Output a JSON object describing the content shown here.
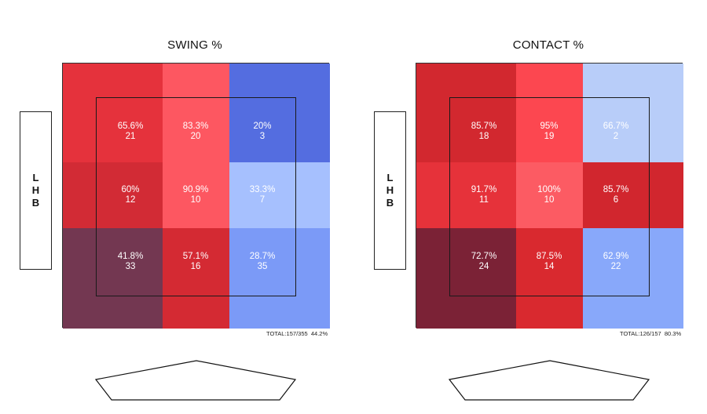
{
  "batter_side_letters": [
    "L",
    "H",
    "B"
  ],
  "color_scale": {
    "high": "#b3202e",
    "mid": "#ff5c64",
    "low": "#4f6ae0",
    "pale": "#b6cdfa"
  },
  "chart_data": [
    {
      "type": "heatmap",
      "title": "SWING %",
      "total_label": "TOTAL:157/355",
      "total_pct": "44.2%",
      "inner_zone": [
        {
          "row": 0,
          "col": 0,
          "pct": "65.6%",
          "count": "21",
          "value": 65.6
        },
        {
          "row": 0,
          "col": 1,
          "pct": "83.3%",
          "count": "20",
          "value": 83.3
        },
        {
          "row": 0,
          "col": 2,
          "pct": "20%",
          "count": "3",
          "value": 20
        },
        {
          "row": 1,
          "col": 0,
          "pct": "60%",
          "count": "12",
          "value": 60
        },
        {
          "row": 1,
          "col": 1,
          "pct": "90.9%",
          "count": "10",
          "value": 90.9
        },
        {
          "row": 1,
          "col": 2,
          "pct": "33.3%",
          "count": "7",
          "value": 33.3
        },
        {
          "row": 2,
          "col": 0,
          "pct": "41.8%",
          "count": "33",
          "value": 41.8
        },
        {
          "row": 2,
          "col": 1,
          "pct": "57.1%",
          "count": "16",
          "value": 57.1
        },
        {
          "row": 2,
          "col": 2,
          "pct": "28.7%",
          "count": "35",
          "value": 28.7
        }
      ],
      "cell_colors": [
        [
          "#e5323c",
          "#fd5761",
          "#546de0"
        ],
        [
          "#d22b35",
          "#fd5761",
          "#a6c0fe"
        ],
        [
          "#733751",
          "#d42a33",
          "#7b9af7"
        ]
      ]
    },
    {
      "type": "heatmap",
      "title": "CONTACT %",
      "total_label": "TOTAL:126/157",
      "total_pct": "80.3%",
      "inner_zone": [
        {
          "row": 0,
          "col": 0,
          "pct": "85.7%",
          "count": "18",
          "value": 85.7
        },
        {
          "row": 0,
          "col": 1,
          "pct": "95%",
          "count": "19",
          "value": 95
        },
        {
          "row": 0,
          "col": 2,
          "pct": "66.7%",
          "count": "2",
          "value": 66.7
        },
        {
          "row": 1,
          "col": 0,
          "pct": "91.7%",
          "count": "11",
          "value": 91.7
        },
        {
          "row": 1,
          "col": 1,
          "pct": "100%",
          "count": "10",
          "value": 100
        },
        {
          "row": 1,
          "col": 2,
          "pct": "85.7%",
          "count": "6",
          "value": 85.7
        },
        {
          "row": 2,
          "col": 0,
          "pct": "72.7%",
          "count": "24",
          "value": 72.7
        },
        {
          "row": 2,
          "col": 1,
          "pct": "87.5%",
          "count": "14",
          "value": 87.5
        },
        {
          "row": 2,
          "col": 2,
          "pct": "62.9%",
          "count": "22",
          "value": 62.9
        }
      ],
      "cell_colors": [
        [
          "#d2282f",
          "#fc4750",
          "#b8cdf9"
        ],
        [
          "#e6323a",
          "#fc5b63",
          "#d1262e"
        ],
        [
          "#7b2236",
          "#d9292f",
          "#88a8fa"
        ]
      ]
    }
  ]
}
